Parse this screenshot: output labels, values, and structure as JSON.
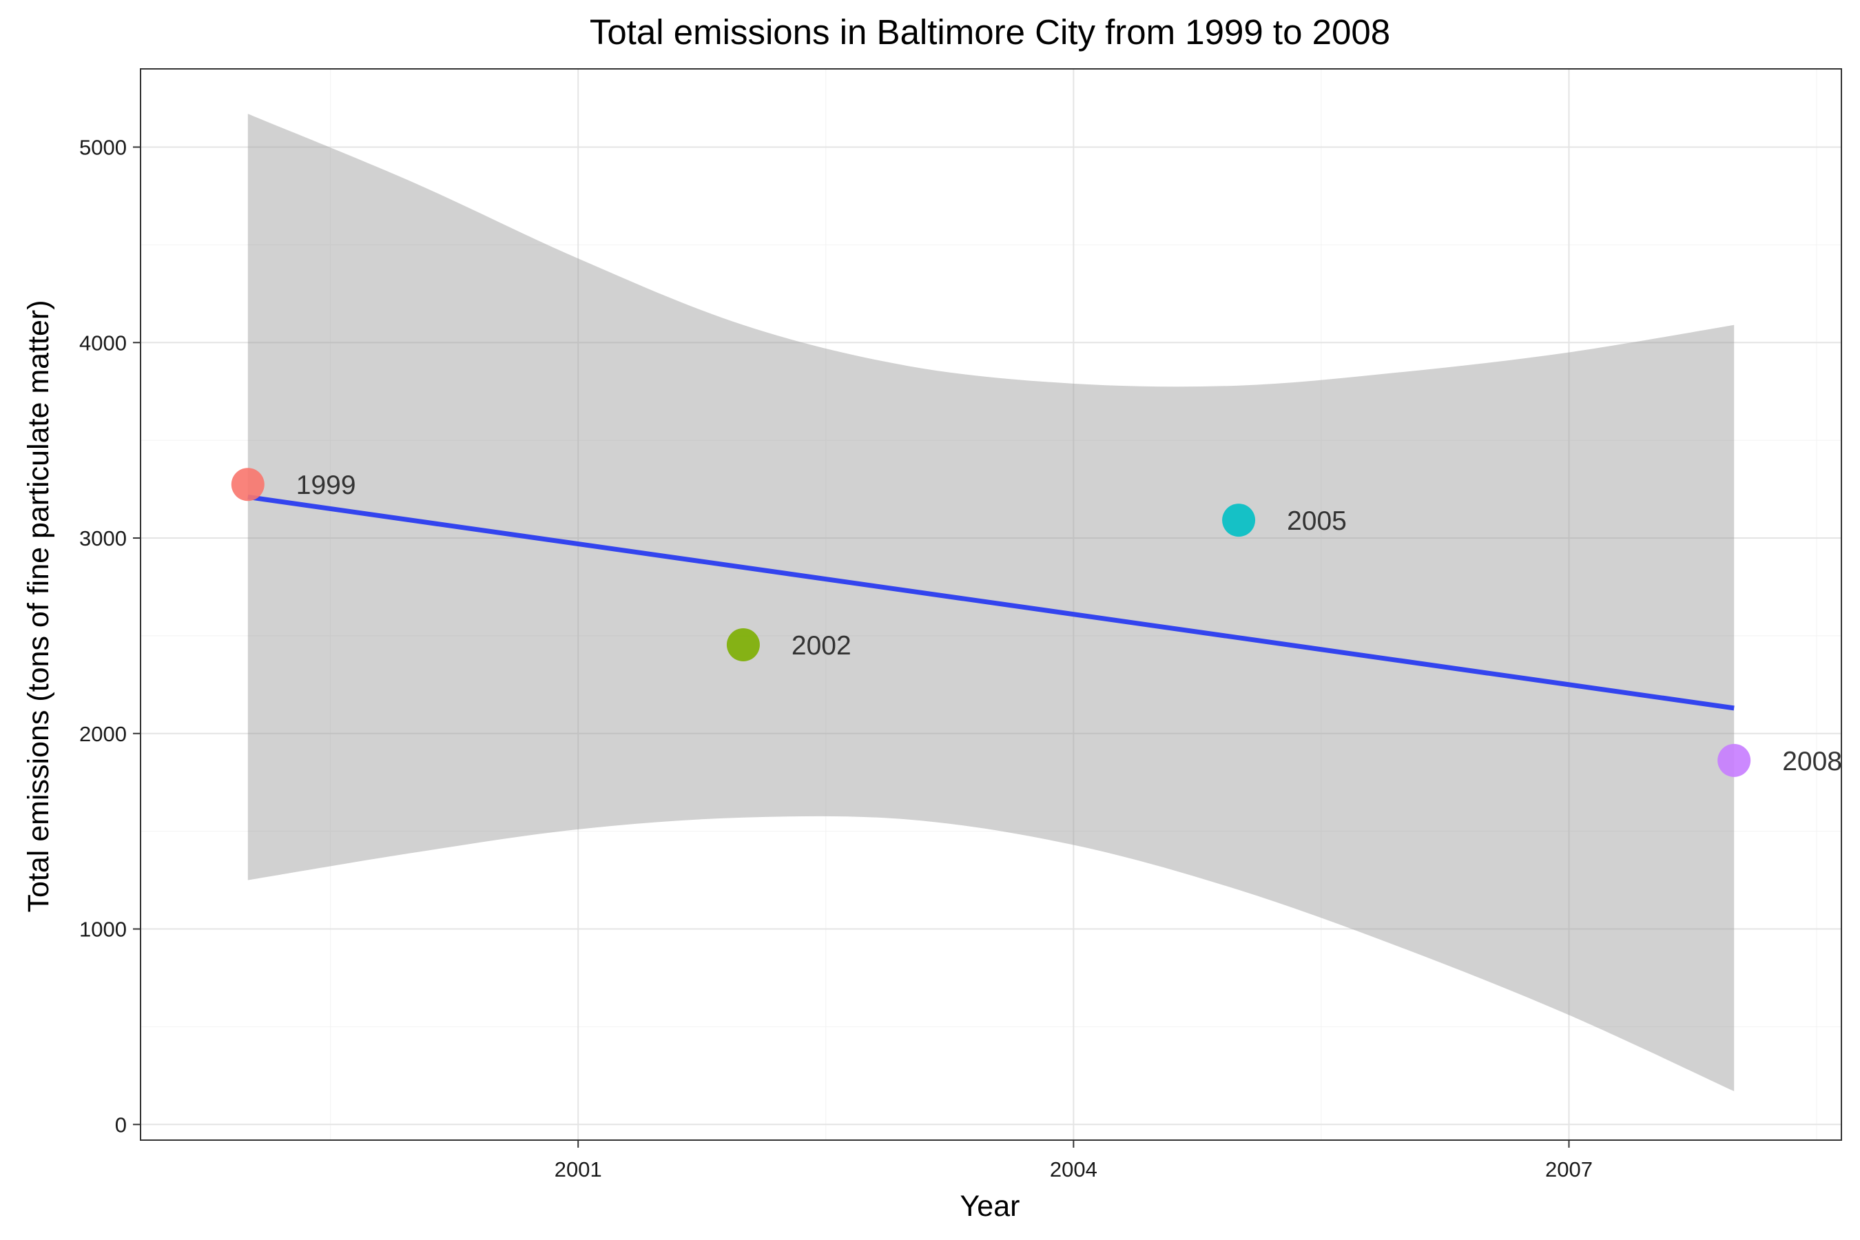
{
  "chart_data": {
    "type": "scatter",
    "title": "Total emissions in Baltimore City from 1999 to 2008",
    "xlabel": "Year",
    "ylabel": "Total emissions (tons of fine particulate matter)",
    "xlim": [
      1998.35,
      2008.65
    ],
    "ylim": [
      -80,
      5400
    ],
    "x_ticks": [
      2001,
      2004,
      2007
    ],
    "y_ticks": [
      0,
      1000,
      2000,
      3000,
      4000,
      5000
    ],
    "grid": true,
    "legend": "none",
    "points": [
      {
        "x": 1999,
        "y": 3274.18,
        "label": "1999",
        "color": "#F8766D"
      },
      {
        "x": 2002,
        "y": 2453.92,
        "label": "2002",
        "color": "#7CAE00"
      },
      {
        "x": 2005,
        "y": 3091.35,
        "label": "2005",
        "color": "#00BFC4"
      },
      {
        "x": 2008,
        "y": 1862.28,
        "label": "2008",
        "color": "#C77CFF"
      }
    ],
    "trend_line": {
      "method": "linear",
      "color": "#3344ee",
      "start": {
        "x": 1999,
        "y": 3210
      },
      "end": {
        "x": 2008,
        "y": 2130
      }
    },
    "confidence_band": {
      "color": "#999999",
      "upper": [
        [
          1999,
          5170
        ],
        [
          2000,
          4820
        ],
        [
          2001,
          4430
        ],
        [
          2002,
          4090
        ],
        [
          2003,
          3880
        ],
        [
          2004,
          3790
        ],
        [
          2005,
          3780
        ],
        [
          2006,
          3850
        ],
        [
          2007,
          3950
        ],
        [
          2008,
          4090
        ]
      ],
      "lower": [
        [
          1999,
          1250
        ],
        [
          2000,
          1390
        ],
        [
          2001,
          1510
        ],
        [
          2002,
          1570
        ],
        [
          2003,
          1560
        ],
        [
          2004,
          1430
        ],
        [
          2005,
          1200
        ],
        [
          2006,
          900
        ],
        [
          2007,
          560
        ],
        [
          2008,
          170
        ]
      ]
    }
  }
}
